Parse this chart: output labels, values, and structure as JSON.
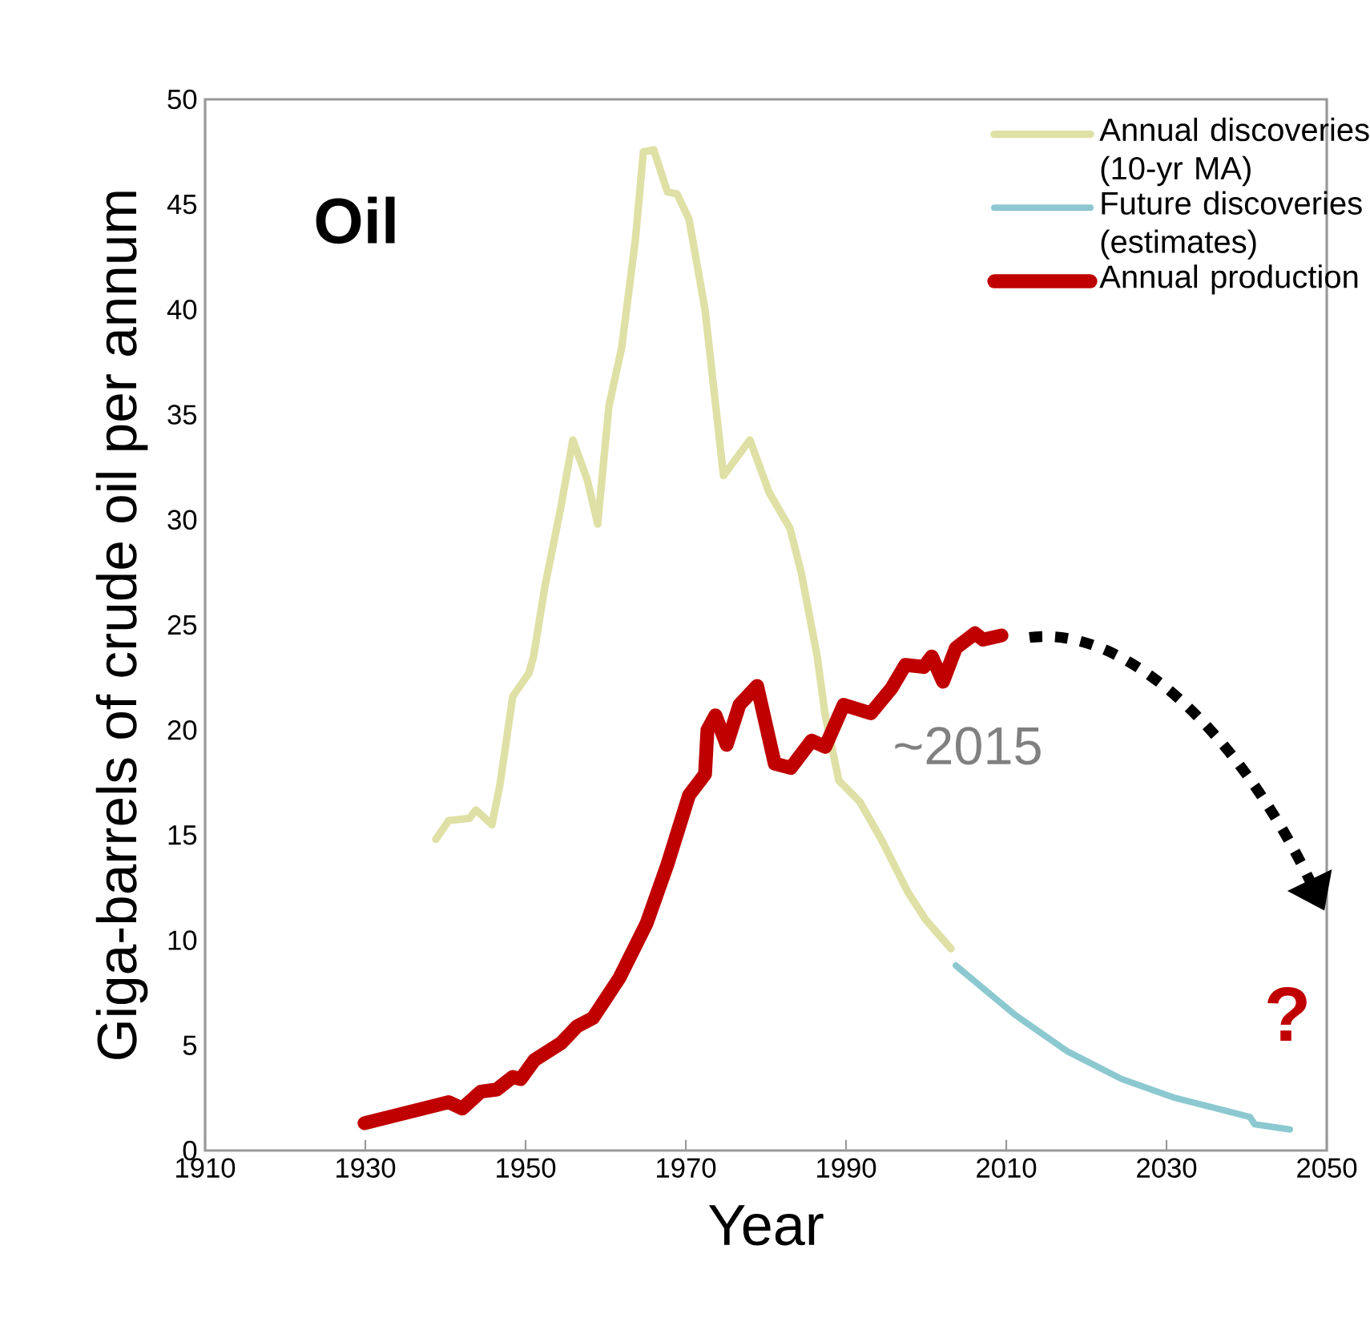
{
  "chart_data": {
    "type": "line",
    "title": "Oil",
    "xlabel": "Year",
    "ylabel": "Giga-barrels of crude oil per annum",
    "xlim": [
      1910,
      2050
    ],
    "ylim": [
      0,
      50
    ],
    "xticks": [
      1910,
      1930,
      1950,
      1970,
      1990,
      2010,
      2030,
      2050
    ],
    "yticks": [
      0,
      5,
      10,
      15,
      20,
      25,
      30,
      35,
      40,
      45,
      50
    ],
    "legend": "top right",
    "grid": false,
    "annotations": [
      "~2015",
      "?"
    ],
    "series": [
      {
        "name": "Annual discoveries (10-yr MA)",
        "color": "#dfe0a5",
        "x": [
          1938.8,
          1940.4,
          1943,
          1943.8,
          1945.8,
          1946.8,
          1948.4,
          1950.4,
          1951,
          1952.4,
          1954.4,
          1955.9,
          1957.7,
          1959,
          1960.4,
          1962,
          1963.7,
          1964.7,
          1966,
          1967.7,
          1968.9,
          1970.4,
          1972.4,
          1974.7,
          1978,
          1980.4,
          1983,
          1984.4,
          1986.4,
          1987.4,
          1989.1,
          1991.7,
          1994.4,
          1997.7,
          1999.9,
          2003.1
        ],
        "values": [
          14.8,
          15.7,
          15.8,
          16.2,
          15.5,
          17.4,
          21.6,
          22.7,
          23.5,
          26.8,
          30.6,
          33.8,
          31.9,
          29.8,
          35.4,
          38.2,
          43.3,
          47.5,
          47.6,
          45.6,
          45.5,
          44.3,
          40,
          32.1,
          33.8,
          31.3,
          29.6,
          27.5,
          23.5,
          20.7,
          17.6,
          16.6,
          14.8,
          12.3,
          11.0,
          9.6
        ]
      },
      {
        "name": "Future discoveries (estimates)",
        "color": "#8cc8d0",
        "x": [
          2003.7,
          2011.1,
          2017.7,
          2024.4,
          2031.1,
          2040.4,
          2041,
          2045.4
        ],
        "values": [
          8.8,
          6.45,
          4.7,
          3.4,
          2.5,
          1.6,
          1.25,
          1.0
        ]
      },
      {
        "name": "Annual production",
        "color": "#c00000",
        "x": [
          1929.9,
          1940.4,
          1942.1,
          1944.4,
          1946.4,
          1948.4,
          1949.4,
          1951.1,
          1954.4,
          1956.4,
          1958.4,
          1961.7,
          1965.1,
          1967.7,
          1970.4,
          1972.4,
          1972.7,
          1973.7,
          1975.1,
          1976.7,
          1978.9,
          1981.1,
          1983.1,
          1985.7,
          1987.4,
          1989.7,
          1993.1,
          1995.7,
          1997.4,
          1999.7,
          2000.7,
          2002.1,
          2003.7,
          2006.1,
          2007.1,
          2009.4
        ],
        "values": [
          1.3,
          2.3,
          2.0,
          2.8,
          2.9,
          3.5,
          3.4,
          4.3,
          5.1,
          5.9,
          6.3,
          8.2,
          10.8,
          13.6,
          16.9,
          17.9,
          20.0,
          20.7,
          19.3,
          21.2,
          22.1,
          18.4,
          18.2,
          19.5,
          19.2,
          21.2,
          20.8,
          22.0,
          23.1,
          23.0,
          23.5,
          22.3,
          23.9,
          24.6,
          24.3,
          24.5
        ]
      }
    ]
  }
}
